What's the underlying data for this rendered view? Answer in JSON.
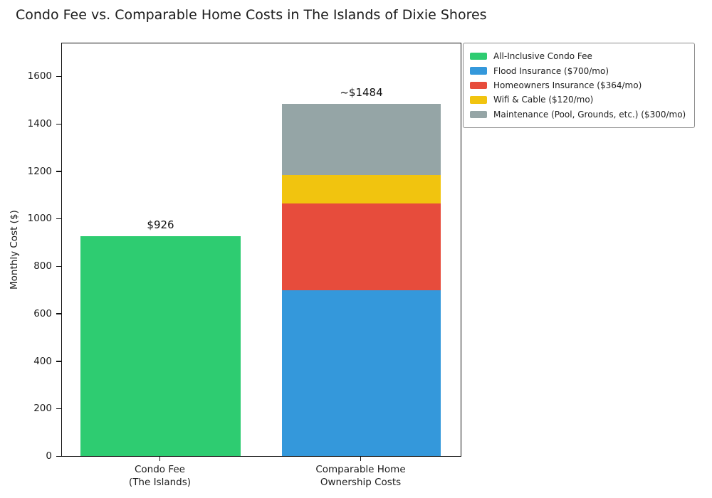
{
  "title": "Condo Fee vs. Comparable Home Costs in The Islands of Dixie Shores",
  "chart_data": {
    "type": "bar",
    "stacked": true,
    "title": "Condo Fee vs. Comparable Home Costs in The Islands of Dixie Shores",
    "xlabel": "",
    "ylabel": "Monthly Cost ($)",
    "ylim": [
      0,
      1745
    ],
    "yticks": [
      0,
      200,
      400,
      600,
      800,
      1000,
      1200,
      1400,
      1600
    ],
    "grid": false,
    "background": "#ffffff",
    "categories": [
      "Condo Fee\n(The Islands)",
      "Comparable Home\nOwnership Costs"
    ],
    "bars": [
      {
        "category_lines": [
          "Condo Fee",
          "(The Islands)"
        ],
        "annotation": "$926",
        "total": 926,
        "segments": [
          {
            "name": "All-Inclusive Condo Fee",
            "value": 926,
            "color": "#2ecc71"
          }
        ]
      },
      {
        "category_lines": [
          "Comparable Home",
          "Ownership Costs"
        ],
        "annotation": "~$1484",
        "total": 1484,
        "segments": [
          {
            "name": "Flood Insurance ($700/mo)",
            "value": 700,
            "color": "#3498db"
          },
          {
            "name": "Homeowners Insurance ($364/mo)",
            "value": 364,
            "color": "#e74c3c"
          },
          {
            "name": "Wifi & Cable ($120/mo)",
            "value": 120,
            "color": "#f1c40f"
          },
          {
            "name": "Maintenance (Pool, Grounds, etc.) ($300/mo)",
            "value": 300,
            "color": "#95a5a6"
          }
        ]
      }
    ],
    "legend": {
      "position": "upper-right-outside",
      "entries": [
        {
          "label": "All-Inclusive Condo Fee",
          "color": "#2ecc71"
        },
        {
          "label": "Flood Insurance ($700/mo)",
          "color": "#3498db"
        },
        {
          "label": "Homeowners Insurance ($364/mo)",
          "color": "#e74c3c"
        },
        {
          "label": "Wifi & Cable ($120/mo)",
          "color": "#f1c40f"
        },
        {
          "label": "Maintenance (Pool, Grounds, etc.) ($300/mo)",
          "color": "#95a5a6"
        }
      ]
    }
  }
}
